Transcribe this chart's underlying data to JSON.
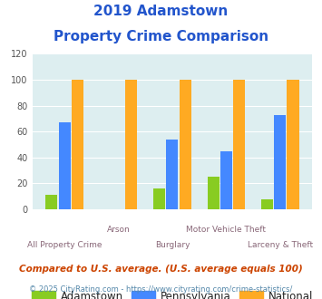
{
  "title_line1": "2019 Adamstown",
  "title_line2": "Property Crime Comparison",
  "categories": [
    "All Property Crime",
    "Arson",
    "Burglary",
    "Motor Vehicle Theft",
    "Larceny & Theft"
  ],
  "adamstown": [
    11,
    0,
    16,
    25,
    8
  ],
  "pennsylvania": [
    67,
    0,
    54,
    45,
    73
  ],
  "national": [
    100,
    100,
    100,
    100,
    100
  ],
  "colors": {
    "adamstown": "#88cc22",
    "pennsylvania": "#4488ff",
    "national": "#ffaa22"
  },
  "ylim": [
    0,
    120
  ],
  "yticks": [
    0,
    20,
    40,
    60,
    80,
    100,
    120
  ],
  "title_color": "#2255cc",
  "xlabel_color_top": "#aa8899",
  "xlabel_color_bot": "#886677",
  "legend_labels": [
    "Adamstown",
    "Pennsylvania",
    "National"
  ],
  "footnote1": "Compared to U.S. average. (U.S. average equals 100)",
  "footnote2": "© 2025 CityRating.com - https://www.cityrating.com/crime-statistics/",
  "bg_color": "#ddeef0",
  "bar_width": 0.22
}
